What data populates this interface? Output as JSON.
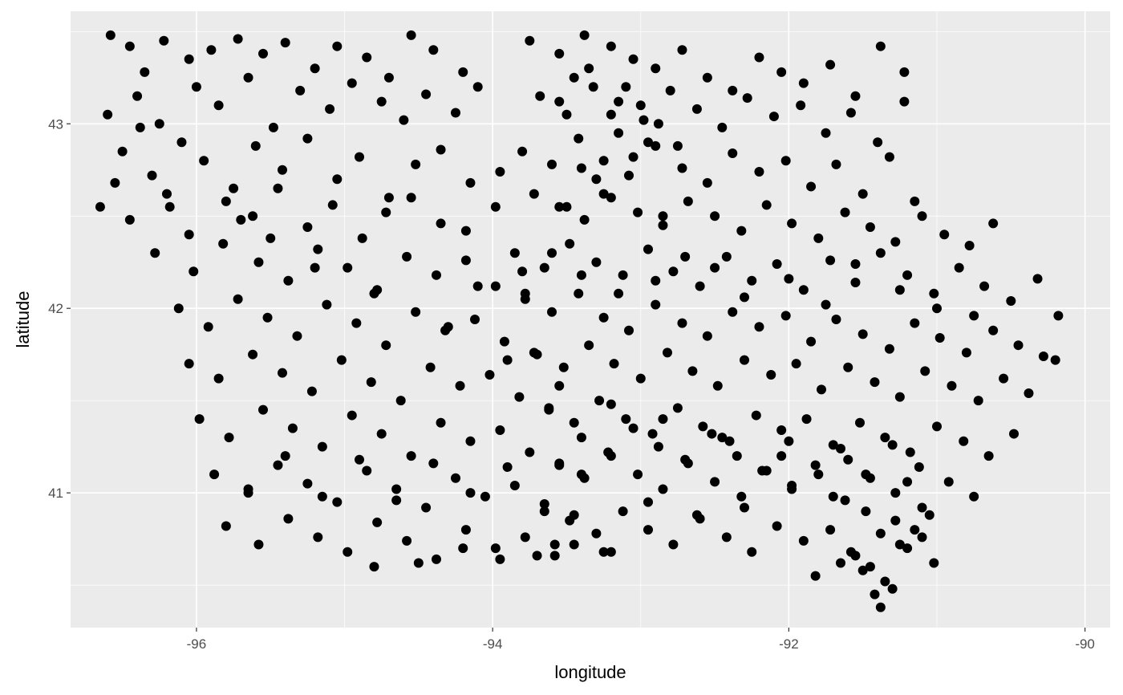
{
  "chart_data": {
    "type": "scatter",
    "title": "",
    "xlabel": "longitude",
    "ylabel": "latitude",
    "xlim": [
      -96.85,
      -89.83
    ],
    "ylim": [
      40.27,
      43.61
    ],
    "x_ticks": [
      -96,
      -94,
      -92,
      -90
    ],
    "x_tick_labels": [
      "-96",
      "-94",
      "-92",
      "-90"
    ],
    "y_ticks": [
      41,
      42,
      43
    ],
    "y_tick_labels": [
      "41",
      "42",
      "43"
    ],
    "grid": true,
    "legend": "none",
    "colors": {
      "panel": "#EBEBEB",
      "grid": "#FFFFFF",
      "point": "#000000",
      "tick_label": "#4D4D4D"
    },
    "series": [
      {
        "x": [
          -96.58,
          -96.45,
          -96.35,
          -96.22,
          -96.05,
          -95.9,
          -95.72,
          -95.55,
          -95.4,
          -95.2,
          -95.05,
          -94.85,
          -94.7,
          -94.55,
          -94.4,
          -94.2,
          -96.6,
          -96.4,
          -96.25,
          -96.0,
          -95.85,
          -95.65,
          -95.48,
          -95.3,
          -95.1,
          -94.95,
          -94.75,
          -94.6,
          -94.45,
          -94.25,
          -94.1,
          -96.5,
          -96.3,
          -96.1,
          -95.95,
          -95.75,
          -95.6,
          -95.42,
          -95.25,
          -95.05,
          -94.9,
          -94.7,
          -94.52,
          -94.35,
          -94.15,
          -93.95,
          -96.65,
          -96.45,
          -96.2,
          -96.05,
          -95.8,
          -95.62,
          -95.45,
          -95.25,
          -95.08,
          -94.88,
          -94.72,
          -94.55,
          -94.35,
          -94.18,
          -93.98,
          -96.28,
          -96.02,
          -95.82,
          -95.58,
          -95.38,
          -95.18,
          -94.98,
          -94.78,
          -94.58,
          -94.38,
          -94.18,
          -93.98,
          -93.78,
          -96.12,
          -95.92,
          -95.72,
          -95.52,
          -95.32,
          -95.12,
          -94.92,
          -94.72,
          -94.52,
          -94.32,
          -94.12,
          -93.92,
          -93.72,
          -96.05,
          -95.85,
          -95.62,
          -95.42,
          -95.22,
          -95.02,
          -94.82,
          -94.62,
          -94.42,
          -94.22,
          -94.02,
          -93.82,
          -93.62,
          -95.98,
          -95.78,
          -95.55,
          -95.35,
          -95.15,
          -94.95,
          -94.75,
          -94.55,
          -94.35,
          -94.15,
          -93.95,
          -93.75,
          -93.55,
          -95.88,
          -95.65,
          -95.45,
          -95.25,
          -95.05,
          -94.85,
          -94.65,
          -94.45,
          -94.25,
          -94.05,
          -93.85,
          -93.65,
          -93.45,
          -95.8,
          -95.58,
          -95.38,
          -95.18,
          -94.98,
          -94.78,
          -94.58,
          -94.38,
          -94.18,
          -93.98,
          -93.78,
          -93.58,
          -95.65,
          -95.4,
          -95.15,
          -94.9,
          -94.65,
          -94.4,
          -94.15,
          -93.9,
          -93.65,
          -93.4,
          -94.8,
          -94.5,
          -94.2,
          -93.95,
          -93.7,
          -93.45,
          -93.2,
          -93.75,
          -93.55,
          -93.38,
          -93.2,
          -93.05,
          -92.9,
          -92.72,
          -92.55,
          -92.38,
          -92.2,
          -92.05,
          -91.9,
          -91.72,
          -91.55,
          -91.38,
          -91.22,
          -93.68,
          -93.5,
          -93.32,
          -93.15,
          -92.98,
          -92.8,
          -92.62,
          -92.45,
          -92.28,
          -92.1,
          -91.92,
          -91.75,
          -91.58,
          -91.4,
          -91.22,
          -93.8,
          -93.6,
          -93.42,
          -93.25,
          -93.08,
          -92.9,
          -92.72,
          -92.55,
          -92.38,
          -92.2,
          -92.02,
          -91.85,
          -91.68,
          -91.5,
          -91.32,
          -91.15,
          -93.72,
          -93.55,
          -93.38,
          -93.2,
          -93.02,
          -92.85,
          -92.68,
          -92.5,
          -92.32,
          -92.15,
          -91.98,
          -91.8,
          -91.62,
          -91.45,
          -91.28,
          -91.1,
          -90.95,
          -90.78,
          -90.62,
          -93.85,
          -93.65,
          -93.48,
          -93.3,
          -93.12,
          -92.95,
          -92.78,
          -92.6,
          -92.42,
          -92.25,
          -92.08,
          -91.9,
          -91.72,
          -91.55,
          -91.38,
          -91.2,
          -91.02,
          -90.85,
          -90.68,
          -90.5,
          -90.32,
          -93.78,
          -93.6,
          -93.42,
          -93.25,
          -93.08,
          -92.9,
          -92.72,
          -92.55,
          -92.38,
          -92.2,
          -92.02,
          -91.85,
          -91.68,
          -91.5,
          -91.32,
          -91.15,
          -90.98,
          -90.8,
          -90.62,
          -90.45,
          -90.28,
          -90.18,
          -93.7,
          -93.52,
          -93.35,
          -93.18,
          -93.0,
          -92.82,
          -92.65,
          -92.48,
          -92.3,
          -92.12,
          -91.95,
          -91.78,
          -91.6,
          -91.42,
          -91.25,
          -91.08,
          -90.9,
          -90.72,
          -90.55,
          -90.38,
          -90.2,
          -93.62,
          -93.45,
          -93.28,
          -93.1,
          -92.92,
          -92.75,
          -92.58,
          -92.4,
          -92.22,
          -92.05,
          -91.88,
          -91.7,
          -91.52,
          -91.35,
          -91.18,
          -91.0,
          -90.82,
          -90.65,
          -90.48,
          -93.55,
          -93.38,
          -93.2,
          -93.02,
          -92.85,
          -92.68,
          -92.5,
          -92.32,
          -92.15,
          -91.98,
          -91.8,
          -91.62,
          -91.45,
          -91.28,
          -91.1,
          -90.92,
          -90.75,
          -93.48,
          -93.3,
          -93.12,
          -92.95,
          -92.78,
          -92.6,
          -92.42,
          -92.25,
          -92.08,
          -91.9,
          -91.72,
          -91.55,
          -91.38,
          -91.2,
          -91.02,
          -93.4,
          -93.22,
          -93.05,
          -92.88,
          -92.7,
          -92.52,
          -92.35,
          -92.18,
          -92.0,
          -91.82,
          -91.65,
          -91.48,
          -91.3,
          -91.12,
          -93.58,
          -93.25,
          -92.95,
          -92.62,
          -92.3,
          -91.98,
          -91.7,
          -91.48,
          -91.28,
          -91.1,
          -91.82,
          -91.65,
          -91.5,
          -91.42,
          -91.38,
          -91.35,
          -91.3,
          -91.45,
          -91.58,
          -91.25,
          -91.15,
          -91.05,
          -93.1,
          -93.35,
          -93.0,
          -93.2,
          -93.45,
          -92.88,
          -93.55,
          -93.15,
          -92.75,
          -93.3,
          -93.05,
          -92.95,
          -93.4,
          -93.25,
          -93.5,
          -92.85,
          -96.18,
          -96.55,
          -96.38,
          -95.7,
          -95.5,
          -95.2,
          -94.8,
          -94.3,
          -93.9,
          -93.55,
          -93.2,
          -92.85,
          -92.45,
          -92.05,
          -91.6,
          -91.2,
          -94.1,
          -93.8,
          -93.6,
          -93.4,
          -93.15,
          -92.9,
          -92.7,
          -92.5,
          -92.3,
          -92.0,
          -91.75,
          -91.55,
          -91.25,
          -91.0,
          -90.75
        ],
        "y": [
          43.48,
          43.42,
          43.28,
          43.45,
          43.35,
          43.4,
          43.46,
          43.38,
          43.44,
          43.3,
          43.42,
          43.36,
          43.25,
          43.48,
          43.4,
          43.28,
          43.05,
          43.15,
          43.0,
          43.2,
          43.1,
          43.25,
          42.98,
          43.18,
          43.08,
          43.22,
          43.12,
          43.02,
          43.16,
          43.06,
          43.2,
          42.85,
          42.72,
          42.9,
          42.8,
          42.65,
          42.88,
          42.75,
          42.92,
          42.7,
          42.82,
          42.6,
          42.78,
          42.86,
          42.68,
          42.74,
          42.55,
          42.48,
          42.62,
          42.4,
          42.58,
          42.5,
          42.65,
          42.44,
          42.56,
          42.38,
          42.52,
          42.6,
          42.46,
          42.42,
          42.55,
          42.3,
          42.2,
          42.35,
          42.25,
          42.15,
          42.32,
          42.22,
          42.1,
          42.28,
          42.18,
          42.26,
          42.12,
          42.08,
          42.0,
          41.9,
          42.05,
          41.95,
          41.85,
          42.02,
          41.92,
          41.8,
          41.98,
          41.88,
          41.94,
          41.82,
          41.76,
          41.7,
          41.62,
          41.75,
          41.65,
          41.55,
          41.72,
          41.6,
          41.5,
          41.68,
          41.58,
          41.64,
          41.52,
          41.46,
          41.4,
          41.3,
          41.45,
          41.35,
          41.25,
          41.42,
          41.32,
          41.2,
          41.38,
          41.28,
          41.34,
          41.22,
          41.16,
          41.1,
          41.0,
          41.15,
          41.05,
          40.95,
          41.12,
          41.02,
          40.92,
          41.08,
          40.98,
          41.04,
          40.94,
          40.88,
          40.82,
          40.72,
          40.86,
          40.76,
          40.68,
          40.84,
          40.74,
          40.64,
          40.8,
          40.7,
          40.76,
          40.66,
          41.02,
          41.2,
          40.98,
          41.18,
          40.96,
          41.16,
          41.0,
          41.14,
          40.9,
          41.1,
          40.6,
          40.62,
          40.7,
          40.64,
          40.66,
          40.72,
          40.68,
          43.45,
          43.38,
          43.48,
          43.42,
          43.35,
          43.3,
          43.4,
          43.25,
          43.18,
          43.36,
          43.28,
          43.22,
          43.32,
          43.15,
          43.42,
          43.28,
          43.15,
          43.05,
          43.2,
          43.12,
          43.02,
          43.18,
          43.08,
          42.98,
          43.14,
          43.04,
          43.1,
          42.95,
          43.06,
          42.9,
          43.12,
          42.85,
          42.78,
          42.92,
          42.8,
          42.72,
          42.88,
          42.76,
          42.68,
          42.84,
          42.74,
          42.8,
          42.66,
          42.78,
          42.62,
          42.82,
          42.58,
          42.62,
          42.55,
          42.48,
          42.6,
          42.52,
          42.45,
          42.58,
          42.5,
          42.42,
          42.56,
          42.46,
          42.38,
          42.52,
          42.44,
          42.36,
          42.5,
          42.4,
          42.34,
          42.46,
          42.3,
          42.22,
          42.35,
          42.25,
          42.18,
          42.32,
          42.2,
          42.12,
          42.28,
          42.15,
          42.24,
          42.1,
          42.26,
          42.14,
          42.3,
          42.18,
          42.08,
          42.22,
          42.12,
          42.04,
          42.16,
          42.05,
          41.98,
          42.08,
          41.95,
          41.88,
          42.02,
          41.92,
          41.85,
          41.98,
          41.9,
          41.96,
          41.82,
          41.94,
          41.86,
          41.78,
          41.92,
          41.84,
          41.76,
          41.88,
          41.8,
          41.74,
          41.96,
          41.75,
          41.68,
          41.8,
          41.7,
          41.62,
          41.76,
          41.66,
          41.58,
          41.72,
          41.64,
          41.7,
          41.56,
          41.68,
          41.6,
          41.52,
          41.66,
          41.58,
          41.5,
          41.62,
          41.54,
          41.72,
          41.45,
          41.38,
          41.5,
          41.4,
          41.32,
          41.46,
          41.36,
          41.28,
          41.42,
          41.34,
          41.4,
          41.26,
          41.38,
          41.3,
          41.22,
          41.36,
          41.28,
          41.2,
          41.32,
          41.15,
          41.08,
          41.2,
          41.1,
          41.02,
          41.16,
          41.06,
          40.98,
          41.12,
          41.04,
          41.1,
          40.96,
          41.08,
          41.0,
          40.92,
          41.06,
          40.98,
          40.85,
          40.78,
          40.9,
          40.8,
          40.72,
          40.86,
          40.76,
          40.68,
          40.82,
          40.74,
          40.8,
          40.66,
          40.78,
          40.7,
          40.62,
          41.3,
          41.22,
          41.35,
          41.25,
          41.18,
          41.32,
          41.2,
          41.12,
          41.28,
          41.15,
          41.24,
          41.1,
          41.26,
          41.14,
          40.72,
          40.68,
          40.95,
          40.88,
          40.92,
          41.02,
          40.98,
          40.9,
          40.85,
          40.76,
          40.55,
          40.62,
          40.58,
          40.45,
          40.38,
          40.52,
          40.48,
          40.6,
          40.68,
          40.72,
          40.8,
          40.88,
          43.2,
          43.3,
          43.1,
          43.05,
          43.25,
          43.0,
          43.12,
          42.95,
          42.88,
          42.7,
          42.82,
          42.9,
          42.76,
          42.62,
          42.55,
          42.5,
          42.55,
          42.68,
          42.98,
          42.48,
          42.38,
          42.22,
          42.08,
          41.9,
          41.72,
          41.58,
          41.48,
          41.4,
          41.3,
          41.2,
          41.18,
          41.06,
          42.12,
          42.2,
          42.3,
          42.18,
          42.08,
          42.15,
          42.28,
          42.22,
          42.06,
          42.16,
          42.02,
          42.24,
          42.1,
          42.0,
          41.96
        ],
        "_remark": ""
      }
    ]
  }
}
